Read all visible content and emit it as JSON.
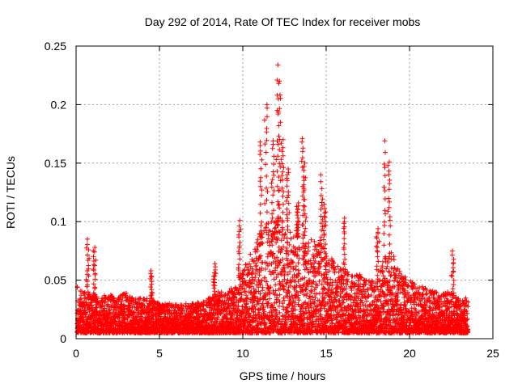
{
  "chart_data": {
    "type": "scatter",
    "title": "Day 292 of 2014, Rate Of TEC Index for receiver mobs",
    "xlabel": "GPS time / hours",
    "ylabel": "ROTI / TECUs",
    "xlim": [
      0,
      25
    ],
    "ylim": [
      0,
      0.25
    ],
    "xticks": [
      0,
      5,
      10,
      15,
      20,
      25
    ],
    "yticks": [
      0,
      0.05,
      0.1,
      0.15,
      0.2,
      0.25
    ],
    "xtick_labels": [
      "0",
      "5",
      "10",
      "15",
      "20",
      "25"
    ],
    "ytick_labels": [
      "0",
      "0.05",
      "0.1",
      "0.15",
      "0.2",
      "0.25"
    ],
    "grid": true,
    "marker": "+",
    "color": "#ff0000",
    "envelope": {
      "x": [
        0,
        0.5,
        1,
        1.5,
        2,
        2.5,
        3,
        3.5,
        4,
        4.5,
        5,
        5.5,
        6,
        6.5,
        7,
        7.5,
        8,
        8.5,
        9,
        9.5,
        10,
        10.5,
        11,
        11.5,
        12,
        12.5,
        13,
        13.5,
        14,
        14.5,
        15,
        15.5,
        16,
        16.5,
        17,
        17.5,
        18,
        18.5,
        19,
        19.5,
        20,
        20.5,
        21,
        21.5,
        22,
        22.5,
        23,
        23.5
      ],
      "low": [
        0.005,
        0.005,
        0.005,
        0.005,
        0.005,
        0.005,
        0.005,
        0.005,
        0.005,
        0.005,
        0.005,
        0.005,
        0.005,
        0.005,
        0.005,
        0.005,
        0.005,
        0.005,
        0.005,
        0.005,
        0.005,
        0.005,
        0.005,
        0.005,
        0.005,
        0.005,
        0.005,
        0.005,
        0.005,
        0.005,
        0.005,
        0.005,
        0.005,
        0.005,
        0.005,
        0.005,
        0.005,
        0.005,
        0.005,
        0.005,
        0.005,
        0.005,
        0.005,
        0.005,
        0.005,
        0.005,
        0.005,
        0.005
      ],
      "high": [
        0.045,
        0.04,
        0.04,
        0.035,
        0.04,
        0.035,
        0.04,
        0.035,
        0.035,
        0.035,
        0.03,
        0.03,
        0.03,
        0.03,
        0.03,
        0.032,
        0.035,
        0.04,
        0.04,
        0.045,
        0.06,
        0.075,
        0.09,
        0.1,
        0.105,
        0.1,
        0.09,
        0.09,
        0.085,
        0.085,
        0.075,
        0.065,
        0.06,
        0.055,
        0.055,
        0.05,
        0.05,
        0.07,
        0.075,
        0.055,
        0.05,
        0.045,
        0.045,
        0.04,
        0.04,
        0.04,
        0.035,
        0.035
      ]
    },
    "peaks": [
      {
        "x": 0.7,
        "y": 0.085
      },
      {
        "x": 1.1,
        "y": 0.078
      },
      {
        "x": 4.5,
        "y": 0.058
      },
      {
        "x": 8.3,
        "y": 0.064
      },
      {
        "x": 9.8,
        "y": 0.101
      },
      {
        "x": 11.1,
        "y": 0.168
      },
      {
        "x": 11.4,
        "y": 0.2
      },
      {
        "x": 11.8,
        "y": 0.169
      },
      {
        "x": 12.1,
        "y": 0.234
      },
      {
        "x": 12.2,
        "y": 0.22
      },
      {
        "x": 12.4,
        "y": 0.17
      },
      {
        "x": 12.7,
        "y": 0.145
      },
      {
        "x": 13.3,
        "y": 0.116
      },
      {
        "x": 13.6,
        "y": 0.171
      },
      {
        "x": 13.7,
        "y": 0.15
      },
      {
        "x": 14.7,
        "y": 0.14
      },
      {
        "x": 14.9,
        "y": 0.115
      },
      {
        "x": 16.1,
        "y": 0.103
      },
      {
        "x": 18.1,
        "y": 0.094
      },
      {
        "x": 18.5,
        "y": 0.169
      },
      {
        "x": 18.8,
        "y": 0.151
      },
      {
        "x": 22.6,
        "y": 0.075
      }
    ]
  }
}
